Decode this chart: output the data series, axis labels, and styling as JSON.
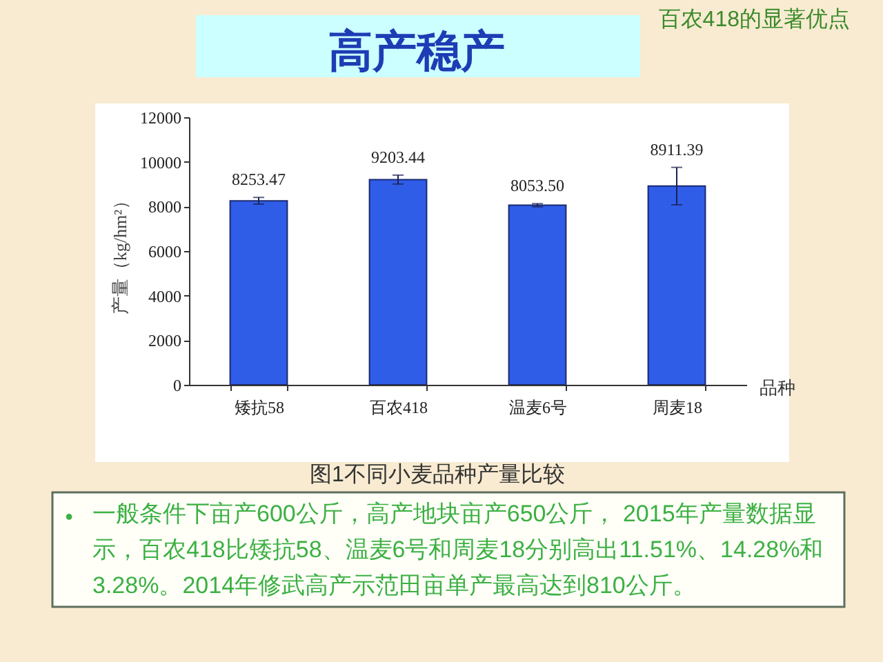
{
  "chart_data": {
    "type": "bar",
    "title": "高产稳产",
    "subtitle": "百农418的显著优点",
    "xlabel": "品种",
    "ylabel": "产量（kg/hm²）",
    "categories": [
      "矮抗58",
      "百农418",
      "温麦6号",
      "周麦18"
    ],
    "values": [
      8253.47,
      9203.44,
      8053.5,
      8911.39
    ],
    "errors": [
      150,
      200,
      70,
      840
    ],
    "value_labels": [
      "8253.47",
      "9203.44",
      "8053.50",
      "8911.39"
    ],
    "color": "#2f5de8",
    "ylim": [
      0,
      12000
    ],
    "yticks": [
      0,
      2000,
      4000,
      6000,
      8000,
      10000,
      12000
    ],
    "annotations": [
      "图1不同小麦品种产量比较",
      "•",
      "一般条件下亩产600公斤，高产地块亩产650公斤， 2015年产量数据显示，百农418比矮抗58、温麦6号和周麦18分别高出11.51%、14.28%和3.28%。2014年修武高产示范田亩单产最高达到810公斤。"
    ]
  }
}
